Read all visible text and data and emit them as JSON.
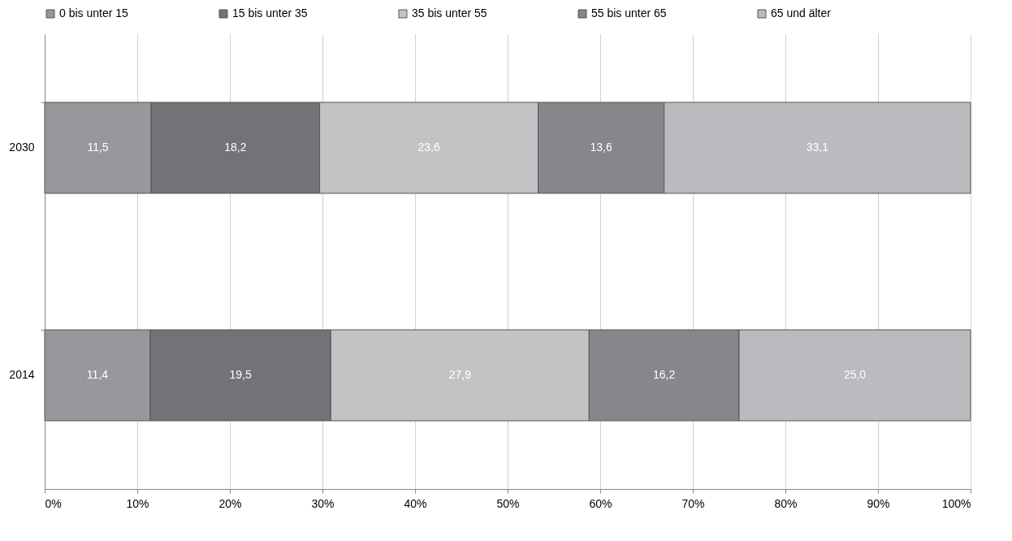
{
  "chart_data": {
    "type": "bar",
    "orientation": "horizontal",
    "stacked": true,
    "categories": [
      "2030",
      "2014"
    ],
    "series": [
      {
        "name": "0 bis unter 15",
        "color": "#97989b",
        "values": [
          11.5,
          11.4
        ],
        "value_labels": [
          "11,5",
          "11,4"
        ]
      },
      {
        "name": "15 bis unter 35",
        "color": "#727377",
        "values": [
          18.2,
          19.5
        ],
        "value_labels": [
          "18,2",
          "19,5"
        ]
      },
      {
        "name": "35 bis unter 55",
        "color": "#c2c3c5",
        "values": [
          23.6,
          27.9
        ],
        "value_labels": [
          "23,6",
          "27,9"
        ]
      },
      {
        "name": "55 bis unter 65",
        "color": "#86878a",
        "values": [
          13.6,
          16.2
        ],
        "value_labels": [
          "13,6",
          "16,2"
        ]
      },
      {
        "name": "65 und älter",
        "color": "#babbbe",
        "values": [
          33.1,
          25.0
        ],
        "value_labels": [
          "33,1",
          "25,0"
        ]
      }
    ],
    "xlim": [
      0,
      100
    ],
    "xticks": [
      {
        "value": 0,
        "label": "0%"
      },
      {
        "value": 10,
        "label": "10%"
      },
      {
        "value": 20,
        "label": "20%"
      },
      {
        "value": 30,
        "label": "30%"
      },
      {
        "value": 40,
        "label": "40%"
      },
      {
        "value": 50,
        "label": "50%"
      },
      {
        "value": 60,
        "label": "60%"
      },
      {
        "value": 70,
        "label": "70%"
      },
      {
        "value": 80,
        "label": "80%"
      },
      {
        "value": 90,
        "label": "90%"
      },
      {
        "value": 100,
        "label": "100%"
      }
    ],
    "grid": "x",
    "legend": "top"
  }
}
